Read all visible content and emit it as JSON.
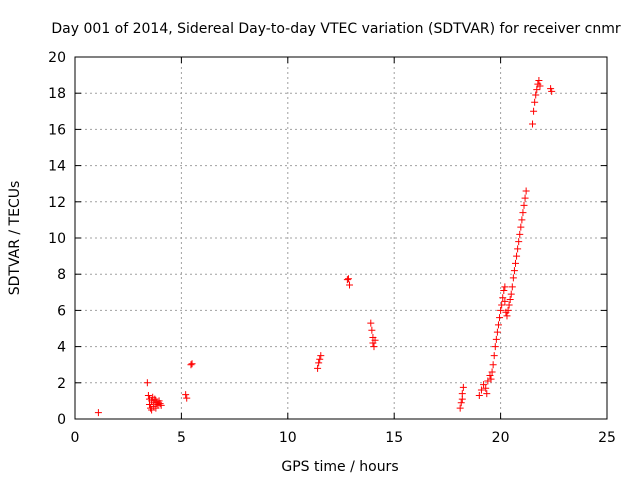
{
  "chart_data": {
    "type": "scatter",
    "title": "Day 001 of 2014, Sidereal Day-to-day VTEC variation (SDTVAR) for receiver cnmr",
    "xlabel": "GPS time / hours",
    "ylabel": "SDTVAR / TECUs",
    "xlim": [
      0,
      25
    ],
    "ylim": [
      0,
      20
    ],
    "xticks": [
      0,
      5,
      10,
      15,
      20,
      25
    ],
    "yticks": [
      0,
      2,
      4,
      6,
      8,
      10,
      12,
      14,
      16,
      18,
      20
    ],
    "grid": true,
    "marker": "+",
    "color": "#ff0000",
    "series": [
      {
        "name": "SDTVAR",
        "points": [
          [
            1.1,
            0.35
          ],
          [
            3.4,
            2.0
          ],
          [
            3.45,
            1.3
          ],
          [
            3.5,
            1.1
          ],
          [
            3.5,
            0.8
          ],
          [
            3.55,
            0.6
          ],
          [
            3.6,
            1.0
          ],
          [
            3.6,
            0.5
          ],
          [
            3.65,
            1.2
          ],
          [
            3.7,
            0.9
          ],
          [
            3.7,
            0.7
          ],
          [
            3.75,
            1.1
          ],
          [
            3.8,
            1.0
          ],
          [
            3.8,
            0.6
          ],
          [
            3.85,
            0.9
          ],
          [
            3.9,
            0.8
          ],
          [
            3.95,
            1.0
          ],
          [
            4.0,
            0.85
          ],
          [
            4.05,
            0.75
          ],
          [
            5.2,
            1.35
          ],
          [
            5.25,
            1.15
          ],
          [
            5.45,
            3.0
          ],
          [
            5.5,
            3.05
          ],
          [
            11.4,
            2.8
          ],
          [
            11.45,
            3.1
          ],
          [
            11.5,
            3.3
          ],
          [
            11.55,
            3.5
          ],
          [
            12.8,
            7.7
          ],
          [
            12.85,
            7.75
          ],
          [
            12.9,
            7.4
          ],
          [
            13.9,
            5.3
          ],
          [
            13.95,
            4.9
          ],
          [
            14.0,
            4.5
          ],
          [
            14.0,
            4.2
          ],
          [
            14.05,
            4.0
          ],
          [
            14.1,
            4.35
          ],
          [
            18.1,
            0.6
          ],
          [
            18.15,
            0.9
          ],
          [
            18.2,
            1.1
          ],
          [
            18.2,
            1.4
          ],
          [
            18.25,
            1.75
          ],
          [
            19.0,
            1.3
          ],
          [
            19.1,
            1.6
          ],
          [
            19.2,
            1.9
          ],
          [
            19.3,
            1.7
          ],
          [
            19.35,
            1.4
          ],
          [
            19.4,
            2.1
          ],
          [
            19.5,
            2.4
          ],
          [
            19.55,
            2.2
          ],
          [
            19.6,
            2.6
          ],
          [
            19.65,
            3.0
          ],
          [
            19.7,
            3.5
          ],
          [
            19.75,
            4.0
          ],
          [
            19.8,
            4.4
          ],
          [
            19.85,
            4.8
          ],
          [
            19.9,
            5.2
          ],
          [
            19.95,
            5.6
          ],
          [
            20.0,
            6.0
          ],
          [
            20.05,
            6.3
          ],
          [
            20.1,
            6.7
          ],
          [
            20.15,
            7.1
          ],
          [
            20.2,
            7.3
          ],
          [
            20.2,
            6.5
          ],
          [
            20.25,
            5.9
          ],
          [
            20.3,
            5.7
          ],
          [
            20.35,
            6.0
          ],
          [
            20.4,
            6.3
          ],
          [
            20.45,
            6.6
          ],
          [
            20.5,
            6.9
          ],
          [
            20.55,
            7.3
          ],
          [
            20.6,
            7.8
          ],
          [
            20.65,
            8.2
          ],
          [
            20.7,
            8.6
          ],
          [
            20.75,
            9.0
          ],
          [
            20.8,
            9.4
          ],
          [
            20.85,
            9.8
          ],
          [
            20.9,
            10.2
          ],
          [
            20.95,
            10.6
          ],
          [
            21.0,
            11.0
          ],
          [
            21.05,
            11.4
          ],
          [
            21.1,
            11.8
          ],
          [
            21.15,
            12.2
          ],
          [
            21.2,
            12.6
          ],
          [
            21.5,
            16.3
          ],
          [
            21.55,
            17.0
          ],
          [
            21.6,
            17.5
          ],
          [
            21.65,
            17.9
          ],
          [
            21.7,
            18.2
          ],
          [
            21.75,
            18.5
          ],
          [
            21.8,
            18.7
          ],
          [
            21.85,
            18.4
          ],
          [
            22.35,
            18.25
          ],
          [
            22.4,
            18.1
          ]
        ]
      }
    ]
  }
}
